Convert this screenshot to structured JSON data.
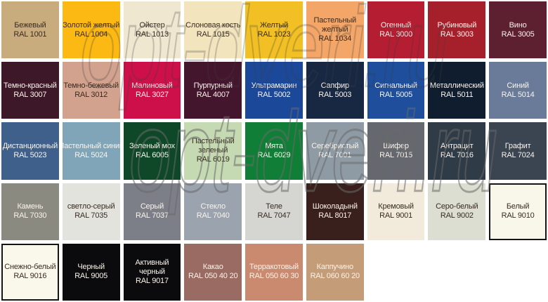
{
  "watermark": {
    "text": "opt-dveri.ru"
  },
  "chart_data": {
    "type": "table",
    "columns": 9,
    "rows": 5,
    "cells": [
      {
        "name": "Бежевый",
        "code": "RAL 1001",
        "color": "#C9AC7E",
        "text": "dark"
      },
      {
        "name": "Золотой желтый",
        "code": "RAL 1004",
        "color": "#FDB913",
        "text": "dark"
      },
      {
        "name": "Ойстер",
        "code": "RAL 1013",
        "color": "#F0E7D1",
        "text": "dark"
      },
      {
        "name": "Слоновая кость",
        "code": "RAL 1015",
        "color": "#F2E5BE",
        "text": "dark"
      },
      {
        "name": "Желтый",
        "code": "RAL 1023",
        "color": "#F2C024",
        "text": "dark"
      },
      {
        "name": "Пастельный\nжелтый",
        "code": "RAL 1034",
        "color": "#F4A668",
        "text": "dark"
      },
      {
        "name": "Огенный",
        "code": "RAL 3000",
        "color": "#B51E32",
        "text": "light"
      },
      {
        "name": "Рубиновый",
        "code": "RAL 3003",
        "color": "#A6202C",
        "text": "light"
      },
      {
        "name": "Вино",
        "code": "RAL 3005",
        "color": "#5C2030",
        "text": "light"
      },
      {
        "name": "Темно-красный",
        "code": "RAL 3007",
        "color": "#3D1828",
        "text": "light"
      },
      {
        "name": "Темно-бежевый",
        "code": "RAL 3012",
        "color": "#D2A28E",
        "text": "dark"
      },
      {
        "name": "Малиновый",
        "code": "RAL 3027",
        "color": "#CD1049",
        "text": "light"
      },
      {
        "name": "Пурпурный",
        "code": "RAL 4007",
        "color": "#44162E",
        "text": "light"
      },
      {
        "name": "Ультрамарин",
        "code": "RAL 5002",
        "color": "#1C4899",
        "text": "light"
      },
      {
        "name": "Сапфир",
        "code": "RAL 5003",
        "color": "#182842",
        "text": "light"
      },
      {
        "name": "Сигнальный",
        "code": "RAL 5005",
        "color": "#1E4E9C",
        "text": "light"
      },
      {
        "name": "Металлический",
        "code": "RAL 5011",
        "color": "#101D2E",
        "text": "light"
      },
      {
        "name": "Синий",
        "code": "RAL 5014",
        "color": "#6A7B99",
        "text": "light"
      },
      {
        "name": "Дистанционный",
        "code": "RAL 5023",
        "color": "#3E608A",
        "text": "light"
      },
      {
        "name": "Пастельный синий",
        "code": "RAL 5024",
        "color": "#80A5B8",
        "text": "light"
      },
      {
        "name": "Зеленый мох",
        "code": "RAL 6005",
        "color": "#0F4829",
        "text": "light"
      },
      {
        "name": "Пастельный\nзеленый",
        "code": "RAL 6019",
        "color": "#C5DAB3",
        "text": "dark"
      },
      {
        "name": "Мята",
        "code": "RAL 6029",
        "color": "#117E38",
        "text": "light"
      },
      {
        "name": "Серебристый",
        "code": "RAL 7001",
        "color": "#8E9AA4",
        "text": "light"
      },
      {
        "name": "Шифер",
        "code": "RAL 7015",
        "color": "#65686E",
        "text": "light"
      },
      {
        "name": "Антрацит",
        "code": "RAL 7016",
        "color": "#2F3B46",
        "text": "light"
      },
      {
        "name": "Графит",
        "code": "RAL 7024",
        "color": "#3B4451",
        "text": "light"
      },
      {
        "name": "Камень",
        "code": "RAL 7030",
        "color": "#8B8A80",
        "text": "light"
      },
      {
        "name": "светло-серый",
        "code": "RAL 7035",
        "color": "#E2E3DC",
        "text": "dark"
      },
      {
        "name": "Серый",
        "code": "RAL 7037",
        "color": "#7D7F88",
        "text": "light"
      },
      {
        "name": "Стекло",
        "code": "RAL 7040",
        "color": "#9BA3AE",
        "text": "light"
      },
      {
        "name": "Теле",
        "code": "RAL 7047",
        "color": "#D5D5D1",
        "text": "dark"
      },
      {
        "name": "Шоколадынй",
        "code": "RAL 8017",
        "color": "#3A201D",
        "text": "light"
      },
      {
        "name": "Кремовый",
        "code": "RAL 9001",
        "color": "#F2EADB",
        "text": "dark"
      },
      {
        "name": "Серо-белый",
        "code": "RAL 9002",
        "color": "#DCDED1",
        "text": "dark"
      },
      {
        "name": "Белый",
        "code": "RAL 9010",
        "color": "#F8F7EA",
        "text": "dark",
        "border": true
      },
      {
        "name": "Снежно-белый",
        "code": "RAL 9016",
        "color": "#F9F8EB",
        "text": "dark",
        "border": true
      },
      {
        "name": "Черный",
        "code": "RAL 9005",
        "color": "#0B0B0D",
        "text": "light"
      },
      {
        "name": "Активный\nчерный",
        "code": "RAL 9017",
        "color": "#0B0B0D",
        "text": "light"
      },
      {
        "name": "Какао",
        "code": "RAL 050 40 20",
        "color": "#9A6B62",
        "text": "light"
      },
      {
        "name": "Терракотовый",
        "code": "RAL 050 60 30",
        "color": "#C98A70",
        "text": "light"
      },
      {
        "name": "Каппучино",
        "code": "RAL 060 60 20",
        "color": "#C49C77",
        "text": "light"
      }
    ]
  }
}
